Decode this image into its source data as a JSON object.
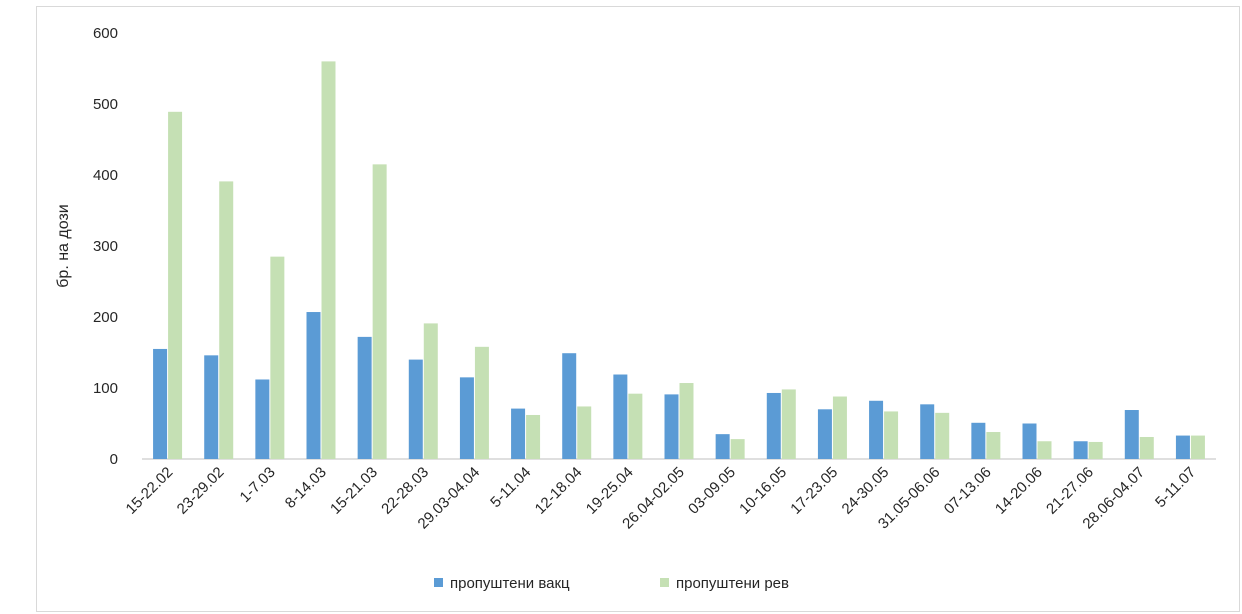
{
  "chart_data": {
    "type": "bar",
    "categories": [
      "15-22.02",
      "23-29.02",
      "1-7.03",
      "8-14.03",
      "15-21.03",
      "22-28.03",
      "29.03-04.04",
      "5-11.04",
      "12-18.04",
      "19-25.04",
      "26.04-02.05",
      "03-09.05",
      "10-16.05",
      "17-23.05",
      "24-30.05",
      "31.05-06.06",
      "07-13.06",
      "14-20.06",
      "21-27.06",
      "28.06-04.07",
      "5-11.07"
    ],
    "series": [
      {
        "name": "пропуштени вакц",
        "color": "#5b9bd5",
        "values": [
          155,
          146,
          112,
          207,
          172,
          140,
          115,
          71,
          149,
          119,
          91,
          35,
          93,
          70,
          82,
          77,
          51,
          50,
          25,
          69,
          33
        ]
      },
      {
        "name": "пропуштени рев",
        "color": "#c5e0b4",
        "values": [
          489,
          391,
          285,
          560,
          415,
          191,
          158,
          62,
          74,
          92,
          107,
          28,
          98,
          88,
          67,
          65,
          38,
          25,
          24,
          31,
          33
        ]
      }
    ],
    "title": "",
    "xlabel": "",
    "ylabel": "бр. на дози",
    "ylim": [
      0,
      600
    ],
    "yticks": [
      0,
      100,
      200,
      300,
      400,
      500,
      600
    ],
    "grid": false,
    "legend_position": "bottom"
  }
}
